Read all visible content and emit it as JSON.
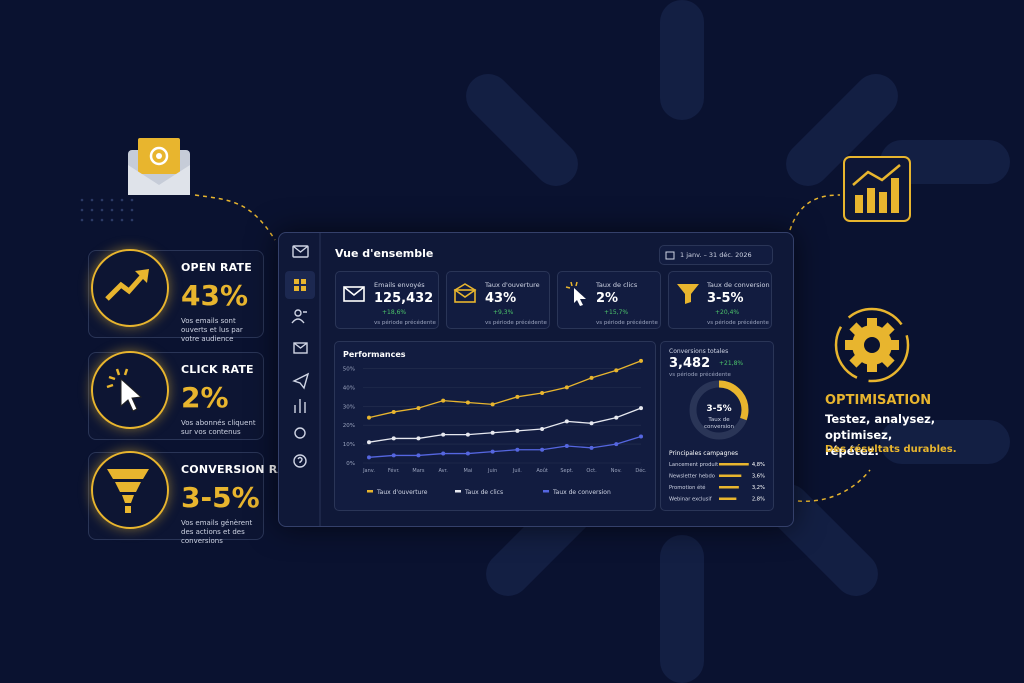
{
  "left_cards": [
    {
      "title": "OPEN RATE",
      "value": "43%",
      "description": "Vos emails sont ouverts et lus par votre audience"
    },
    {
      "title": "CLICK RATE",
      "value": "2%",
      "description": "Vos abonnés cliquent sur vos contenus"
    },
    {
      "title": "CONVERSION RATE",
      "value": "3-5%",
      "description": "Vos emails génèrent des actions et des conversions"
    }
  ],
  "dashboard": {
    "title": "Vue d'ensemble",
    "date_range": "1 janv. – 31 déc. 2026",
    "kpis": [
      {
        "label": "Emails envoyés",
        "value": "125,432",
        "delta": "+18,6%",
        "note": "vs période précédente"
      },
      {
        "label": "Taux d'ouverture",
        "value": "43%",
        "delta": "+9,3%",
        "note": "vs période précédente"
      },
      {
        "label": "Taux de clics",
        "value": "2%",
        "delta": "+15,7%",
        "note": "vs période précédente"
      },
      {
        "label": "Taux de conversion",
        "value": "3-5%",
        "delta": "+20,4%",
        "note": "vs période précédente"
      }
    ],
    "conversions": {
      "label": "Conversions totales",
      "value": "3,482",
      "delta": "+21,8%",
      "note": "vs période précédente",
      "donut_value": "3-5%",
      "donut_label": "Taux de conversion"
    },
    "campaigns": {
      "title": "Principales campagnes",
      "rows": [
        {
          "name": "Lancement produit",
          "value": 4.8,
          "value_label": "4,8%"
        },
        {
          "name": "Newsletter hebdo",
          "value": 3.6,
          "value_label": "3,6%"
        },
        {
          "name": "Promotion été",
          "value": 3.2,
          "value_label": "3,2%"
        },
        {
          "name": "Webinar exclusif",
          "value": 2.8,
          "value_label": "2,8%"
        }
      ]
    }
  },
  "optimisation": {
    "title": "OPTIMISATION",
    "text": "Testez, analysez, optimisez, répétez.",
    "highlight": "Des résultats durables."
  },
  "chart_data": {
    "type": "line",
    "title": "Performances",
    "categories": [
      "Janv.",
      "Févr.",
      "Mars",
      "Avr.",
      "Mai",
      "Juin",
      "Juil.",
      "Août",
      "Sept.",
      "Oct.",
      "Nov.",
      "Déc."
    ],
    "ylim": [
      0,
      55
    ],
    "yticks": [
      {
        "value": 0,
        "label": "0%"
      },
      {
        "value": 10,
        "label": "10%"
      },
      {
        "value": 20,
        "label": "20%"
      },
      {
        "value": 30,
        "label": "30%"
      },
      {
        "value": 40,
        "label": "40%"
      },
      {
        "value": 50,
        "label": "50%"
      }
    ],
    "grid": true,
    "series": [
      {
        "name": "Taux d'ouverture",
        "color": "#e8b52e",
        "values": [
          24,
          27,
          29,
          33,
          32,
          31,
          35,
          37,
          40,
          45,
          49,
          54
        ]
      },
      {
        "name": "Taux de clics",
        "color": "#e6e8ef",
        "values": [
          11,
          13,
          13,
          15,
          15,
          16,
          17,
          18,
          22,
          21,
          24,
          29
        ]
      },
      {
        "name": "Taux de conversion",
        "color": "#5566e0",
        "values": [
          3,
          4,
          4,
          5,
          5,
          6,
          7,
          7,
          9,
          8,
          10,
          14
        ]
      }
    ]
  }
}
